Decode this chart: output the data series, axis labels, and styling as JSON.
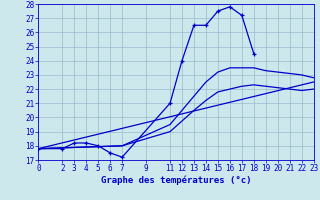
{
  "title": "Graphe des températures (°c)",
  "bg_color": "#cce8ec",
  "line_color": "#0000cc",
  "grid_color": "#99bbcc",
  "xlim": [
    0,
    23
  ],
  "ylim": [
    17,
    28
  ],
  "yticks": [
    17,
    18,
    19,
    20,
    21,
    22,
    23,
    24,
    25,
    26,
    27,
    28
  ],
  "xticks": [
    0,
    2,
    3,
    4,
    5,
    6,
    7,
    9,
    11,
    12,
    13,
    14,
    15,
    16,
    17,
    18,
    19,
    20,
    21,
    22,
    23
  ],
  "series": [
    {
      "x": [
        0,
        2,
        3,
        4,
        5,
        6,
        7,
        11,
        12,
        13,
        14,
        15,
        16,
        17,
        18
      ],
      "y": [
        17.8,
        17.8,
        18.2,
        18.2,
        18.0,
        17.5,
        17.2,
        21.0,
        24.0,
        26.5,
        26.5,
        27.5,
        27.8,
        27.2,
        24.5
      ],
      "marker": "+"
    },
    {
      "x": [
        0,
        7,
        11,
        13,
        14,
        15,
        16,
        17,
        18,
        19,
        20,
        21,
        22,
        23
      ],
      "y": [
        17.8,
        18.0,
        19.5,
        21.5,
        22.5,
        23.2,
        23.5,
        23.5,
        23.5,
        23.3,
        23.2,
        23.1,
        23.0,
        22.8
      ],
      "marker": null
    },
    {
      "x": [
        0,
        7,
        11,
        13,
        14,
        15,
        16,
        17,
        18,
        19,
        20,
        21,
        22,
        23
      ],
      "y": [
        17.8,
        18.0,
        19.0,
        20.5,
        21.2,
        21.8,
        22.0,
        22.2,
        22.3,
        22.2,
        22.1,
        22.0,
        21.9,
        22.0
      ],
      "marker": null
    },
    {
      "x": [
        0,
        23
      ],
      "y": [
        17.8,
        22.5
      ],
      "marker": null
    }
  ]
}
